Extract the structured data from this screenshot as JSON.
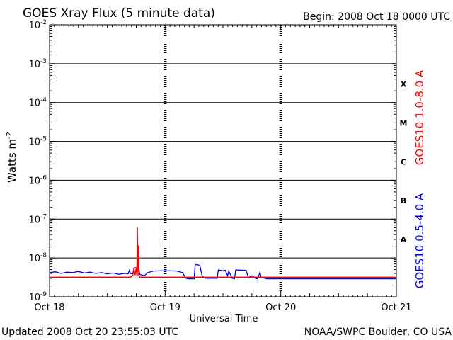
{
  "header": {
    "title": "GOES Xray Flux (5 minute data)",
    "begin": "Begin:  2008 Oct 18 0000 UTC"
  },
  "footer": {
    "updated": "Updated 2008 Oct 20 23:55:03 UTC",
    "credit": "NOAA/SWPC Boulder, CO USA"
  },
  "chart_data": {
    "type": "line",
    "title": "GOES Xray Flux (5 minute data)",
    "xlabel": "Universal Time",
    "ylabel_base": "Watts m",
    "ylabel_exp": "-2",
    "y_scale": "log",
    "ylim": [
      1e-09,
      0.01
    ],
    "y_ticks": [
      {
        "value": 0.01,
        "base": "10",
        "exp": "-2"
      },
      {
        "value": 0.001,
        "base": "10",
        "exp": "-3"
      },
      {
        "value": 0.0001,
        "base": "10",
        "exp": "-4"
      },
      {
        "value": 1e-05,
        "base": "10",
        "exp": "-5"
      },
      {
        "value": 1e-06,
        "base": "10",
        "exp": "-6"
      },
      {
        "value": 1e-07,
        "base": "10",
        "exp": "-7"
      },
      {
        "value": 1e-08,
        "base": "10",
        "exp": "-8"
      },
      {
        "value": 1e-09,
        "base": "10",
        "exp": "-9"
      }
    ],
    "x_unit": "day offset from 2008 Oct 18 0000 UTC",
    "xlim": [
      0,
      3
    ],
    "x_ticks": [
      {
        "value": 0,
        "label": "Oct 18"
      },
      {
        "value": 1,
        "label": "Oct 19"
      },
      {
        "value": 2,
        "label": "Oct 20"
      },
      {
        "value": 3,
        "label": "Oct 21"
      }
    ],
    "gridlines": [
      0.001,
      0.0001,
      1e-05,
      1e-06,
      1e-07,
      1e-08
    ],
    "flare_classes": [
      {
        "label": "X",
        "value": 0.0003
      },
      {
        "label": "M",
        "value": 3e-05
      },
      {
        "label": "C",
        "value": 3e-06
      },
      {
        "label": "B",
        "value": 3e-07
      },
      {
        "label": "A",
        "value": 3e-08
      }
    ],
    "series": [
      {
        "name": "GOES10 1.0-8.0 A",
        "color": "#ff0000",
        "points": [
          [
            0,
            3.2e-09
          ],
          [
            0.7,
            3.2e-09
          ],
          [
            0.72,
            3.5e-09
          ],
          [
            0.73,
            5.5e-09
          ],
          [
            0.74,
            3.6e-09
          ],
          [
            0.75,
            5.8e-09
          ],
          [
            0.755,
            3.4e-09
          ],
          [
            0.76,
            6.2e-08
          ],
          [
            0.765,
            3.5e-09
          ],
          [
            0.77,
            2.1e-08
          ],
          [
            0.775,
            3.3e-09
          ],
          [
            0.78,
            3.2e-09
          ],
          [
            3,
            3.2e-09
          ]
        ]
      },
      {
        "name": "GOES10 0.5-4.0 A",
        "color": "#0000ff",
        "points": [
          [
            0,
            4.2e-09
          ],
          [
            0.05,
            4.4e-09
          ],
          [
            0.1,
            4e-09
          ],
          [
            0.15,
            4.3e-09
          ],
          [
            0.2,
            4.2e-09
          ],
          [
            0.25,
            4.5e-09
          ],
          [
            0.3,
            4.1e-09
          ],
          [
            0.35,
            4.3e-09
          ],
          [
            0.4,
            4e-09
          ],
          [
            0.45,
            4.2e-09
          ],
          [
            0.5,
            3.9e-09
          ],
          [
            0.55,
            4.1e-09
          ],
          [
            0.6,
            3.8e-09
          ],
          [
            0.65,
            4e-09
          ],
          [
            0.68,
            3.9e-09
          ],
          [
            0.69,
            4.8e-09
          ],
          [
            0.7,
            4e-09
          ],
          [
            0.72,
            3.9e-09
          ],
          [
            0.73,
            5.5e-09
          ],
          [
            0.75,
            5.6e-09
          ],
          [
            0.77,
            5.8e-09
          ],
          [
            0.78,
            3.8e-09
          ],
          [
            0.82,
            3.5e-09
          ],
          [
            0.85,
            4.2e-09
          ],
          [
            0.9,
            4.6e-09
          ],
          [
            1.0,
            4.7e-09
          ],
          [
            1.1,
            4.6e-09
          ],
          [
            1.15,
            4.2e-09
          ],
          [
            1.18,
            3e-09
          ],
          [
            1.2,
            2.9e-09
          ],
          [
            1.25,
            2.9e-09
          ],
          [
            1.26,
            6.8e-09
          ],
          [
            1.3,
            6.5e-09
          ],
          [
            1.32,
            3.4e-09
          ],
          [
            1.35,
            3e-09
          ],
          [
            1.45,
            3e-09
          ],
          [
            1.46,
            4.9e-09
          ],
          [
            1.5,
            4.7e-09
          ],
          [
            1.52,
            4.8e-09
          ],
          [
            1.54,
            3.5e-09
          ],
          [
            1.55,
            4.6e-09
          ],
          [
            1.58,
            3e-09
          ],
          [
            1.6,
            2.9e-09
          ],
          [
            1.61,
            4.9e-09
          ],
          [
            1.7,
            4.8e-09
          ],
          [
            1.72,
            3.1e-09
          ],
          [
            1.75,
            3.5e-09
          ],
          [
            1.78,
            3e-09
          ],
          [
            1.8,
            2.9e-09
          ],
          [
            1.82,
            4.3e-09
          ],
          [
            1.83,
            3.2e-09
          ],
          [
            1.86,
            3e-09
          ],
          [
            1.88,
            2.9e-09
          ],
          [
            3,
            2.9e-09
          ]
        ]
      }
    ]
  }
}
